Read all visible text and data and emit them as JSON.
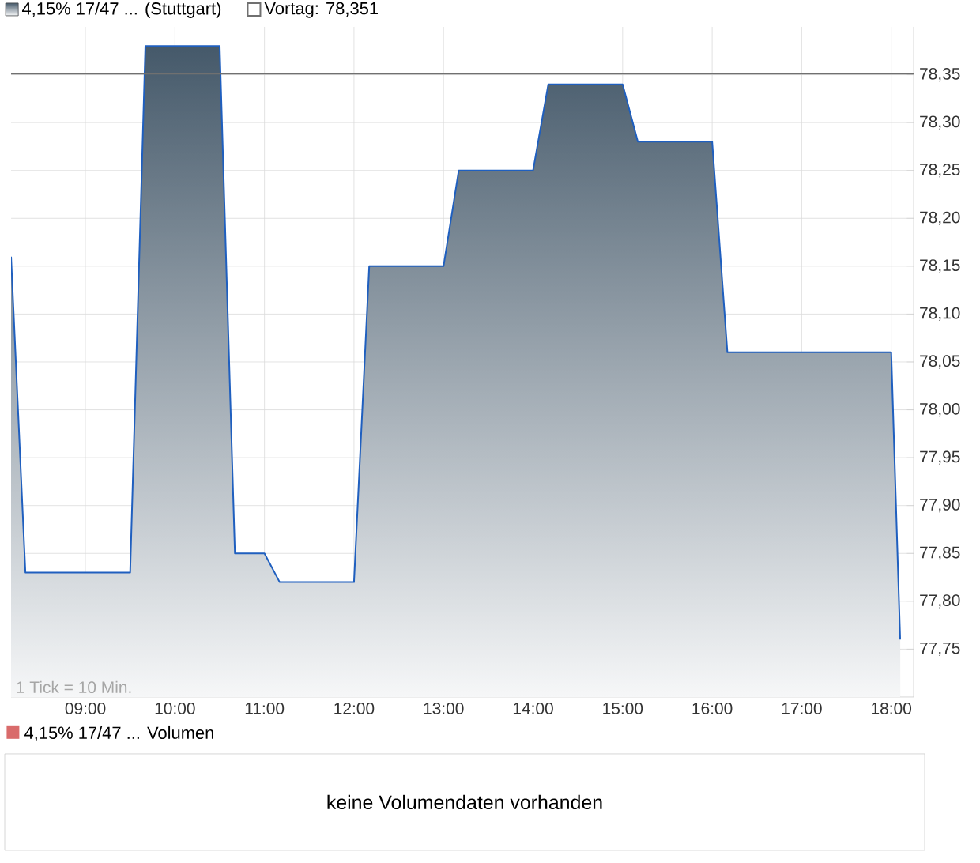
{
  "chart_data": [
    {
      "type": "area",
      "x": [
        8.17,
        8.33,
        9.5,
        9.67,
        10.5,
        10.67,
        11,
        11.17,
        12,
        12.17,
        13,
        13.17,
        14,
        14.17,
        15,
        15.17,
        16,
        16.17,
        18,
        18.1
      ],
      "series": [
        {
          "name": "4,15% 17/47 ... (Stuttgart)",
          "color": "#1f5fbf",
          "values": [
            78.16,
            77.83,
            77.83,
            78.38,
            78.38,
            77.85,
            77.85,
            77.82,
            77.82,
            78.15,
            78.15,
            78.25,
            78.25,
            78.34,
            78.34,
            78.28,
            78.28,
            78.06,
            78.06,
            77.76
          ]
        }
      ],
      "xlim": [
        8.17,
        18.25
      ],
      "ylim": [
        77.7,
        78.4
      ],
      "xticks": [
        {
          "value": 9,
          "label": "09:00"
        },
        {
          "value": 10,
          "label": "10:00"
        },
        {
          "value": 11,
          "label": "11:00"
        },
        {
          "value": 12,
          "label": "12:00"
        },
        {
          "value": 13,
          "label": "13:00"
        },
        {
          "value": 14,
          "label": "14:00"
        },
        {
          "value": 15,
          "label": "15:00"
        },
        {
          "value": 16,
          "label": "16:00"
        },
        {
          "value": 17,
          "label": "17:00"
        },
        {
          "value": 18,
          "label": "18:00"
        }
      ],
      "yticks": [
        {
          "value": 77.75,
          "label": "77,75"
        },
        {
          "value": 77.8,
          "label": "77,80"
        },
        {
          "value": 77.85,
          "label": "77,85"
        },
        {
          "value": 77.9,
          "label": "77,90"
        },
        {
          "value": 77.95,
          "label": "77,95"
        },
        {
          "value": 78.0,
          "label": "78,00"
        },
        {
          "value": 78.05,
          "label": "78,05"
        },
        {
          "value": 78.1,
          "label": "78,10"
        },
        {
          "value": 78.15,
          "label": "78,15"
        },
        {
          "value": 78.2,
          "label": "78,20"
        },
        {
          "value": 78.25,
          "label": "78,25"
        },
        {
          "value": 78.3,
          "label": "78,30"
        },
        {
          "value": 78.35,
          "label": "78,35"
        }
      ],
      "grid": true,
      "legend": "top left",
      "ref_lines": [
        {
          "axis": "y",
          "value": 78.351,
          "label": "Vortag: 78,351",
          "color": "#707070"
        }
      ],
      "annotations": [
        "1 Tick = 10 Min."
      ]
    },
    {
      "type": "other",
      "title": "4,15% 17/47 ... Volumen",
      "annotations": [
        "keine Volumendaten vorhanden"
      ]
    }
  ]
}
